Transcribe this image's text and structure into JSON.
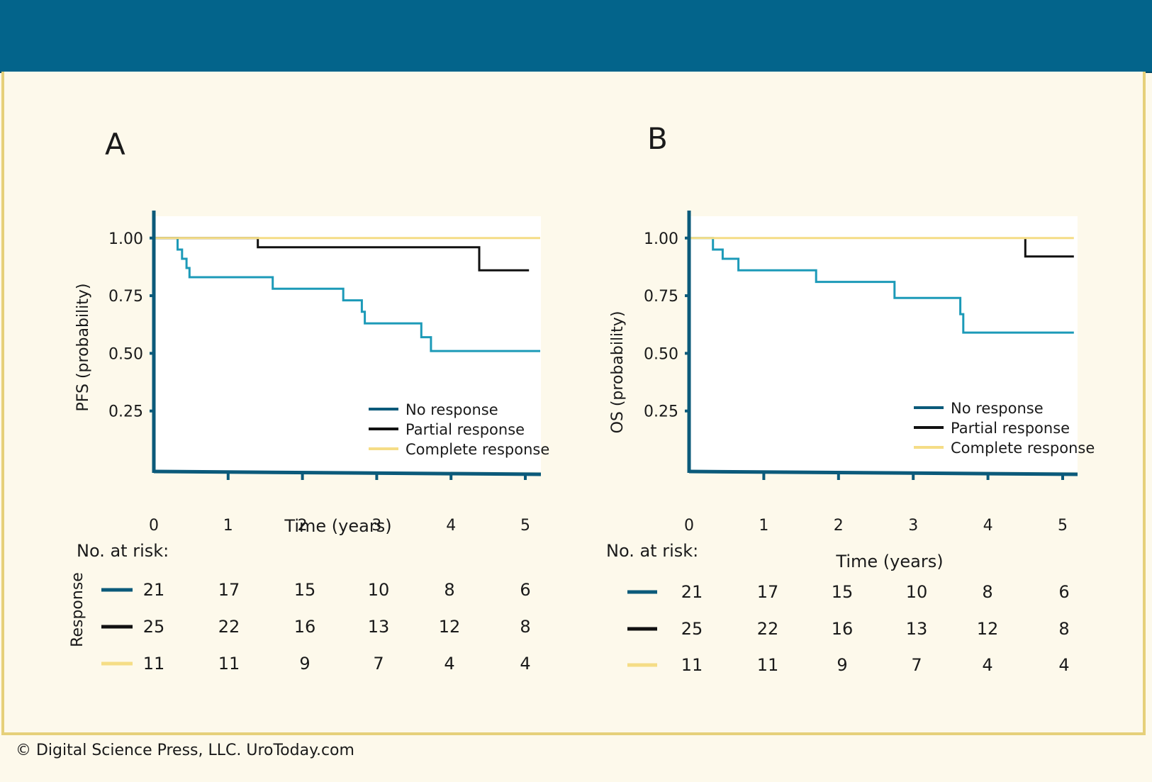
{
  "copyright": "© Digital Science Press, LLC. UroToday.com",
  "colors": {
    "header": "#03648b",
    "frame_border": "#e6d07a",
    "background": "#fdf9eb",
    "no_response": "#1c9ab8",
    "no_response_legend": "#0b5a7a",
    "partial_response": "#111111",
    "complete_response": "#f5dd86",
    "axis": "#0b5a7a"
  },
  "chart_data": [
    {
      "panel_label": "A",
      "type": "line",
      "step": true,
      "ylabel": "PFS (probability)",
      "xlabel": "Time (years)",
      "xlim": [
        0,
        5.2
      ],
      "ylim": [
        0,
        1.03
      ],
      "x_ticks": [
        "0",
        "1",
        "2",
        "3",
        "4",
        "5"
      ],
      "y_ticks": [
        "0.25",
        "0.50",
        "0.75",
        "1.00"
      ],
      "legend": [
        "No response",
        "Partial response",
        "Complete response"
      ],
      "legend_position": "bottom-right",
      "series": [
        {
          "name": "No response",
          "points": [
            [
              0,
              1.0
            ],
            [
              0.32,
              1.0
            ],
            [
              0.32,
              0.95
            ],
            [
              0.38,
              0.95
            ],
            [
              0.38,
              0.91
            ],
            [
              0.44,
              0.91
            ],
            [
              0.44,
              0.87
            ],
            [
              0.48,
              0.87
            ],
            [
              0.48,
              0.83
            ],
            [
              1.6,
              0.83
            ],
            [
              1.6,
              0.78
            ],
            [
              2.55,
              0.78
            ],
            [
              2.55,
              0.73
            ],
            [
              2.8,
              0.73
            ],
            [
              2.8,
              0.68
            ],
            [
              2.84,
              0.68
            ],
            [
              2.84,
              0.63
            ],
            [
              3.6,
              0.63
            ],
            [
              3.6,
              0.57
            ],
            [
              3.73,
              0.57
            ],
            [
              3.73,
              0.51
            ],
            [
              5.2,
              0.51
            ]
          ]
        },
        {
          "name": "Partial response",
          "points": [
            [
              0,
              1.0
            ],
            [
              1.4,
              1.0
            ],
            [
              1.4,
              0.96
            ],
            [
              4.38,
              0.96
            ],
            [
              4.38,
              0.86
            ],
            [
              5.05,
              0.86
            ]
          ]
        },
        {
          "name": "Complete response",
          "points": [
            [
              0,
              1.0
            ],
            [
              5.2,
              1.0
            ]
          ]
        }
      ],
      "risk_table": {
        "title": "No. at risk:",
        "row_label": "Response",
        "rows": [
          {
            "name": "No response",
            "values": [
              "21",
              "17",
              "15",
              "10",
              "8",
              "6"
            ]
          },
          {
            "name": "Partial response",
            "values": [
              "25",
              "22",
              "16",
              "13",
              "12",
              "8"
            ]
          },
          {
            "name": "Complete response",
            "values": [
              "11",
              "11",
              "9",
              "7",
              "4",
              "4"
            ]
          }
        ]
      }
    },
    {
      "panel_label": "B",
      "type": "line",
      "step": true,
      "ylabel": "OS (probability)",
      "xlabel": "Time (years)",
      "xlim": [
        0,
        5.2
      ],
      "ylim": [
        0,
        1.03
      ],
      "x_ticks": [
        "0",
        "1",
        "2",
        "3",
        "4",
        "5"
      ],
      "y_ticks": [
        "0.25",
        "0.50",
        "0.75",
        "1.00"
      ],
      "legend": [
        "No response",
        "Partial response",
        "Complete response"
      ],
      "legend_position": "bottom-right",
      "series": [
        {
          "name": "No response",
          "points": [
            [
              0,
              1.0
            ],
            [
              0.32,
              1.0
            ],
            [
              0.32,
              0.95
            ],
            [
              0.45,
              0.95
            ],
            [
              0.45,
              0.91
            ],
            [
              0.66,
              0.91
            ],
            [
              0.66,
              0.86
            ],
            [
              1.7,
              0.86
            ],
            [
              1.7,
              0.81
            ],
            [
              2.75,
              0.81
            ],
            [
              2.75,
              0.74
            ],
            [
              3.63,
              0.74
            ],
            [
              3.63,
              0.67
            ],
            [
              3.67,
              0.67
            ],
            [
              3.67,
              0.59
            ],
            [
              5.15,
              0.59
            ]
          ]
        },
        {
          "name": "Partial response",
          "points": [
            [
              4.5,
              1.0
            ],
            [
              4.5,
              0.92
            ],
            [
              5.15,
              0.92
            ]
          ]
        },
        {
          "name": "Complete response",
          "points": [
            [
              0,
              1.0
            ],
            [
              5.15,
              1.0
            ]
          ]
        }
      ],
      "risk_table": {
        "title": "No. at risk:",
        "row_label": "",
        "rows": [
          {
            "name": "No response",
            "values": [
              "21",
              "17",
              "15",
              "10",
              "8",
              "6"
            ]
          },
          {
            "name": "Partial response",
            "values": [
              "25",
              "22",
              "16",
              "13",
              "12",
              "8"
            ]
          },
          {
            "name": "Complete response",
            "values": [
              "11",
              "11",
              "9",
              "7",
              "4",
              "4"
            ]
          }
        ]
      }
    }
  ]
}
